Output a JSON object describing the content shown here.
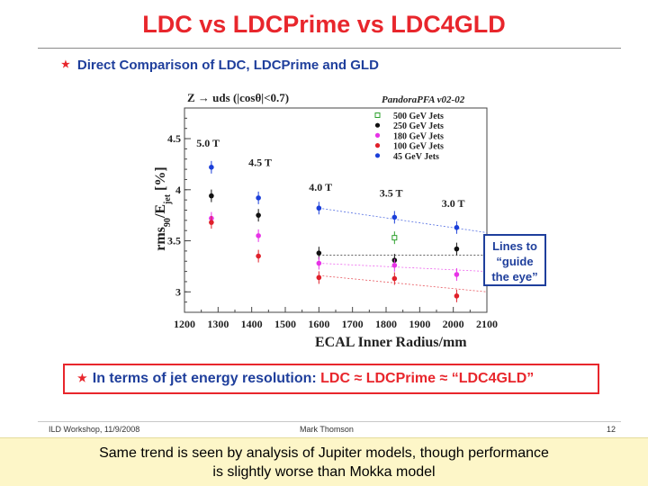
{
  "slide": {
    "title": "LDC vs LDCPrime vs LDC4GLD",
    "bullet": {
      "prefix": "Direct Comparison of ",
      "highlight": "LDC, LDCPrime and GLD"
    },
    "callout_lines": [
      "Lines to",
      "“guide",
      "the eye”"
    ],
    "summary": {
      "prefix": "In terms of jet energy resolution: ",
      "body": "LDC ≈ LDCPrime ≈ “LDC4GLD”"
    },
    "footer": {
      "left": "ILD Workshop, 11/9/2008",
      "center": "Mark Thomson",
      "right": "12"
    },
    "caption": [
      "Same trend is seen by analysis of Jupiter models, though performance",
      "is slightly worse than Mokka model"
    ],
    "colors": {
      "title": "#e8262c",
      "text_blue": "#1f3f9c",
      "caption_bg": "#fdf6c8"
    }
  },
  "chart_data": {
    "type": "scatter",
    "header_left": "Z → uds (|cosθ|<0.7)",
    "header_right": "PandoraPFA v02-02",
    "xlabel": "ECAL Inner Radius/mm",
    "ylabel_main": "rms",
    "ylabel_sub": "90",
    "ylabel_rest": "/E",
    "ylabel_sub2": "jet",
    "ylabel_unit": " [%]",
    "xlim": [
      1200,
      2100
    ],
    "ylim": [
      2.8,
      4.8
    ],
    "xticks": [
      "1200",
      "1300",
      "1400",
      "1500",
      "1600",
      "1700",
      "1800",
      "1900",
      "2000",
      "2100"
    ],
    "yticks": [
      "3",
      "3.5",
      "4",
      "4.5"
    ],
    "field_labels": [
      {
        "text": "5.0 T",
        "x": 1270,
        "y": 4.42
      },
      {
        "text": "4.5 T",
        "x": 1425,
        "y": 4.23
      },
      {
        "text": "4.0 T",
        "x": 1605,
        "y": 3.99
      },
      {
        "text": "3.5 T",
        "x": 1815,
        "y": 3.93
      },
      {
        "text": "3.0 T",
        "x": 2000,
        "y": 3.83
      }
    ],
    "series": [
      {
        "name": "500 GeV Jets",
        "color": "#2ca02c",
        "hollow": true,
        "points": [
          [
            1825,
            3.53
          ]
        ]
      },
      {
        "name": "250 GeV Jets",
        "color": "#111111",
        "hollow": false,
        "points": [
          [
            1280,
            3.94
          ],
          [
            1420,
            3.75
          ],
          [
            1600,
            3.38
          ],
          [
            1825,
            3.31
          ],
          [
            2010,
            3.42
          ]
        ]
      },
      {
        "name": "180 GeV Jets",
        "color": "#e733e7",
        "hollow": false,
        "points": [
          [
            1280,
            3.72
          ],
          [
            1420,
            3.55
          ],
          [
            1600,
            3.28
          ],
          [
            1825,
            3.26
          ],
          [
            2010,
            3.17
          ]
        ]
      },
      {
        "name": "100 GeV Jets",
        "color": "#e0202a",
        "hollow": false,
        "points": [
          [
            1280,
            3.68
          ],
          [
            1420,
            3.35
          ],
          [
            1600,
            3.14
          ],
          [
            1825,
            3.13
          ],
          [
            2010,
            2.96
          ]
        ]
      },
      {
        "name": "45 GeV Jets",
        "color": "#1b3fd9",
        "hollow": false,
        "points": [
          [
            1280,
            4.22
          ],
          [
            1420,
            3.92
          ],
          [
            1600,
            3.82
          ],
          [
            1825,
            3.73
          ],
          [
            2010,
            3.63
          ]
        ]
      }
    ],
    "guide_lines": [
      {
        "color": "#1b3fd9",
        "from": [
          1600,
          3.82
        ],
        "to": [
          2100,
          3.58
        ]
      },
      {
        "color": "#111111",
        "from": [
          1600,
          3.36
        ],
        "to": [
          2100,
          3.36
        ]
      },
      {
        "color": "#e733e7",
        "from": [
          1600,
          3.28
        ],
        "to": [
          2100,
          3.2
        ]
      },
      {
        "color": "#e0202a",
        "from": [
          1600,
          3.16
        ],
        "to": [
          2100,
          3.0
        ]
      }
    ]
  }
}
